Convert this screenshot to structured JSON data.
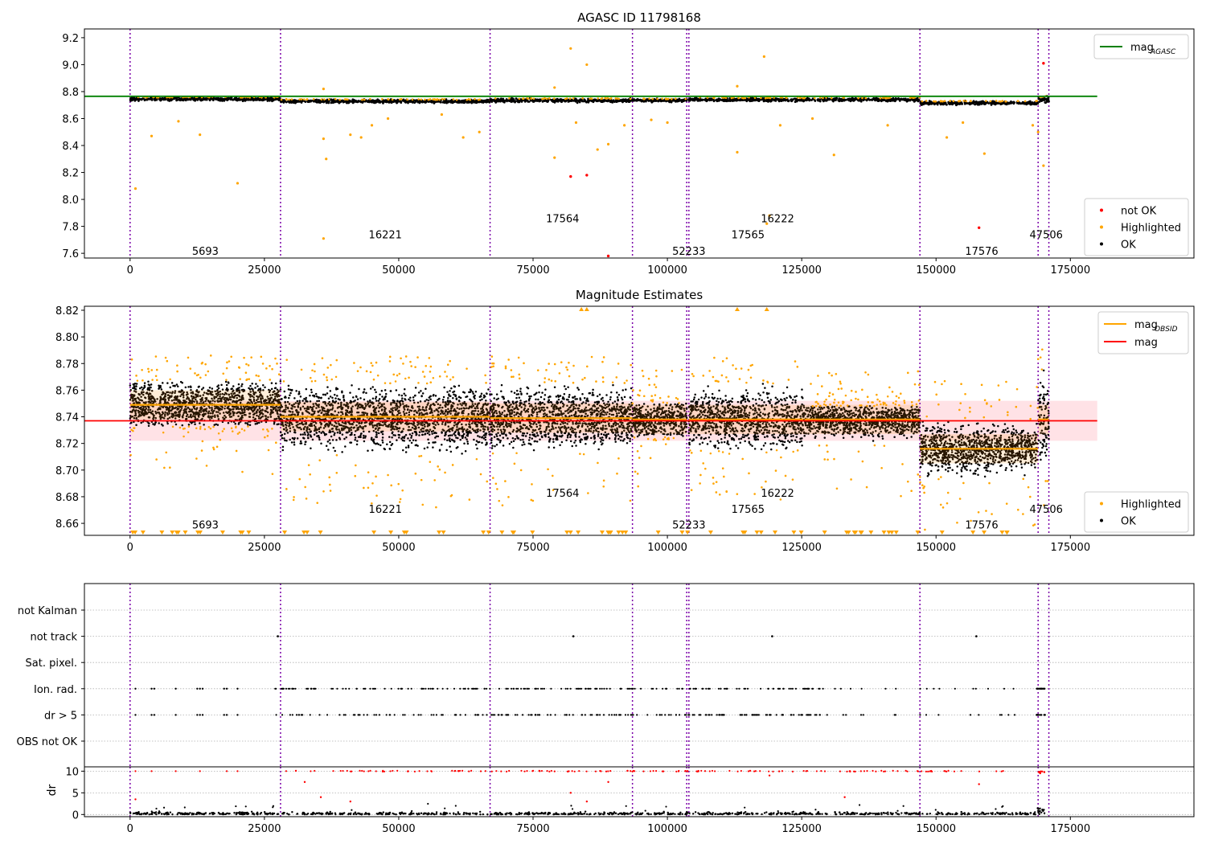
{
  "chart_data": [
    {
      "panel": "top",
      "type": "scatter",
      "title": "AGASC ID 11798168",
      "xlim": [
        -8500,
        198000
      ],
      "ylim": [
        7.565,
        9.265
      ],
      "xticks": [
        0,
        25000,
        50000,
        75000,
        100000,
        125000,
        150000,
        175000
      ],
      "xtick_labels": [
        "0",
        "25000",
        "50000",
        "75000",
        "100000",
        "125000",
        "150000",
        "175000"
      ],
      "yticks": [
        7.6,
        7.8,
        8.0,
        8.2,
        8.4,
        8.6,
        8.8,
        9.0,
        9.2
      ],
      "ytick_labels": [
        "7.6",
        "7.8",
        "8.0",
        "8.2",
        "8.4",
        "8.6",
        "8.8",
        "9.0",
        "9.2"
      ],
      "obsid_boundaries": [
        0,
        28000,
        67000,
        93500,
        103600,
        104000,
        147000,
        169000,
        171000
      ],
      "obsid_labels": [
        {
          "text": "5693",
          "x": 14000,
          "y": 7.62
        },
        {
          "text": "16221",
          "x": 47500,
          "y": 7.74
        },
        {
          "text": "17564",
          "x": 80500,
          "y": 7.86
        },
        {
          "text": "52233",
          "x": 104000,
          "y": 7.62
        },
        {
          "text": "17565",
          "x": 115000,
          "y": 7.74
        },
        {
          "text": "16222",
          "x": 120500,
          "y": 7.86
        },
        {
          "text": "17576",
          "x": 158500,
          "y": 7.62
        },
        {
          "text": "47506",
          "x": 170500,
          "y": 7.74
        }
      ],
      "mag_agasc": 8.765,
      "mag_agasc_xrange": [
        -8500,
        180000
      ],
      "band_segments": [
        {
          "x0": 0,
          "x1": 28000,
          "center": 8.745,
          "upper": 8.76,
          "lower": 8.73
        },
        {
          "x0": 28000,
          "x1": 67000,
          "center": 8.728,
          "upper": 8.745,
          "lower": 8.71
        },
        {
          "x0": 67000,
          "x1": 93500,
          "center": 8.735,
          "upper": 8.755,
          "lower": 8.72
        },
        {
          "x0": 93500,
          "x1": 103600,
          "center": 8.735,
          "upper": 8.75,
          "lower": 8.72
        },
        {
          "x0": 104000,
          "x1": 147000,
          "center": 8.74,
          "upper": 8.755,
          "lower": 8.725
        },
        {
          "x0": 147000,
          "x1": 169000,
          "center": 8.717,
          "upper": 8.73,
          "lower": 8.705
        },
        {
          "x0": 169000,
          "x1": 171000,
          "center": 8.74,
          "upper": 8.76,
          "lower": 8.72
        }
      ],
      "highlighted_points": [
        [
          1000,
          8.08
        ],
        [
          4000,
          8.47
        ],
        [
          9000,
          8.58
        ],
        [
          13000,
          8.48
        ],
        [
          20000,
          8.12
        ],
        [
          36000,
          8.82
        ],
        [
          36000,
          8.45
        ],
        [
          36500,
          8.3
        ],
        [
          36000,
          7.71
        ],
        [
          41000,
          8.48
        ],
        [
          43000,
          8.46
        ],
        [
          45000,
          8.55
        ],
        [
          48000,
          8.6
        ],
        [
          58000,
          8.63
        ],
        [
          62000,
          8.46
        ],
        [
          65000,
          8.5
        ],
        [
          79000,
          8.31
        ],
        [
          79000,
          8.83
        ],
        [
          82000,
          9.12
        ],
        [
          83000,
          8.57
        ],
        [
          85000,
          9.0
        ],
        [
          87000,
          8.37
        ],
        [
          89000,
          8.41
        ],
        [
          92000,
          8.55
        ],
        [
          97000,
          8.59
        ],
        [
          100000,
          8.57
        ],
        [
          113000,
          8.84
        ],
        [
          113000,
          8.35
        ],
        [
          118000,
          9.06
        ],
        [
          118500,
          7.82
        ],
        [
          119000,
          7.88
        ],
        [
          121000,
          8.55
        ],
        [
          127000,
          8.6
        ],
        [
          131000,
          8.33
        ],
        [
          141000,
          8.55
        ],
        [
          152000,
          8.46
        ],
        [
          155000,
          8.57
        ],
        [
          159000,
          8.34
        ],
        [
          168000,
          8.55
        ],
        [
          169000,
          8.5
        ],
        [
          170000,
          8.25
        ]
      ],
      "not_ok_points": [
        [
          82000,
          8.17
        ],
        [
          85000,
          8.18
        ],
        [
          89000,
          7.58
        ],
        [
          158000,
          7.79
        ],
        [
          170000,
          9.01
        ]
      ],
      "ok_segments": [
        {
          "x0": 0,
          "x1": 28000,
          "y": 8.745,
          "spread": 0.012
        },
        {
          "x0": 28000,
          "x1": 67000,
          "y": 8.728,
          "spread": 0.012
        },
        {
          "x0": 67000,
          "x1": 93500,
          "y": 8.735,
          "spread": 0.012
        },
        {
          "x0": 93500,
          "x1": 103600,
          "y": 8.735,
          "spread": 0.01
        },
        {
          "x0": 104000,
          "x1": 147000,
          "y": 8.74,
          "spread": 0.012
        },
        {
          "x0": 147000,
          "x1": 169000,
          "y": 8.715,
          "spread": 0.012
        },
        {
          "x0": 169000,
          "x1": 171000,
          "y": 8.74,
          "spread": 0.02
        }
      ],
      "legend_upper": [
        {
          "label": "mag",
          "sub": "AGASC",
          "color": "#008000",
          "style": "line"
        }
      ],
      "legend_lower": [
        {
          "label": "not OK",
          "color": "#ff0000",
          "style": "dot"
        },
        {
          "label": "Highlighted",
          "color": "#ffa500",
          "style": "dot"
        },
        {
          "label": "OK",
          "color": "#000000",
          "style": "dot"
        }
      ]
    },
    {
      "panel": "middle",
      "type": "scatter",
      "title": "Magnitude Estimates",
      "xlim": [
        -8500,
        198000
      ],
      "ylim": [
        8.651,
        8.823
      ],
      "xticks": [
        0,
        25000,
        50000,
        75000,
        100000,
        125000,
        150000,
        175000
      ],
      "xtick_labels": [
        "0",
        "25000",
        "50000",
        "75000",
        "100000",
        "125000",
        "150000",
        "175000"
      ],
      "yticks": [
        8.66,
        8.68,
        8.7,
        8.72,
        8.74,
        8.76,
        8.78,
        8.8,
        8.82
      ],
      "ytick_labels": [
        "8.66",
        "8.68",
        "8.70",
        "8.72",
        "8.74",
        "8.76",
        "8.78",
        "8.80",
        "8.82"
      ],
      "obsid_labels": [
        {
          "text": "5693",
          "x": 14000,
          "y": 8.659
        },
        {
          "text": "16221",
          "x": 47500,
          "y": 8.671
        },
        {
          "text": "17564",
          "x": 80500,
          "y": 8.683
        },
        {
          "text": "52233",
          "x": 104000,
          "y": 8.659
        },
        {
          "text": "17565",
          "x": 115000,
          "y": 8.671
        },
        {
          "text": "16222",
          "x": 120500,
          "y": 8.683
        },
        {
          "text": "17576",
          "x": 158500,
          "y": 8.659
        },
        {
          "text": "47506",
          "x": 170500,
          "y": 8.671
        }
      ],
      "mag": 8.737,
      "mag_band": [
        8.722,
        8.752
      ],
      "mag_xrange": [
        -8500,
        180000
      ],
      "obsid_segments": [
        {
          "x0": 0,
          "x1": 28000,
          "mag": 8.749,
          "lo": 8.733,
          "hi": 8.767,
          "spread": 0.011,
          "hl": 0.78
        },
        {
          "x0": 28000,
          "x1": 67000,
          "mag": 8.74,
          "lo": 8.712,
          "hi": 8.765,
          "spread": 0.014,
          "hl": 0.78
        },
        {
          "x0": 67000,
          "x1": 93500,
          "mag": 8.739,
          "lo": 8.713,
          "hi": 8.765,
          "spread": 0.013,
          "hl": 0.77
        },
        {
          "x0": 93500,
          "x1": 103600,
          "mag": 8.738,
          "lo": 8.725,
          "hi": 8.75,
          "spread": 0.009,
          "hl": 0.775
        },
        {
          "x0": 104000,
          "x1": 125500,
          "mag": 8.738,
          "lo": 8.715,
          "hi": 8.765,
          "spread": 0.013,
          "hl": 0.775
        },
        {
          "x0": 125500,
          "x1": 147000,
          "mag": 8.738,
          "lo": 8.72,
          "hi": 8.748,
          "spread": 0.008,
          "hl": 0.755
        },
        {
          "x0": 147000,
          "x1": 169000,
          "mag": 8.716,
          "lo": 8.695,
          "hi": 8.738,
          "spread": 0.011,
          "hl": 0.75
        },
        {
          "x0": 169000,
          "x1": 171000,
          "mag": 8.738,
          "lo": 8.7,
          "hi": 8.775,
          "spread": 0.02,
          "hl": 0.78
        }
      ],
      "legend_upper": [
        {
          "label": "mag",
          "sub": "OBSID",
          "color": "#ffa500",
          "style": "line"
        },
        {
          "label": "mag",
          "sub": "",
          "color": "#ff0000",
          "style": "line"
        }
      ],
      "legend_lower": [
        {
          "label": "Highlighted",
          "color": "#ffa500",
          "style": "dot"
        },
        {
          "label": "OK",
          "color": "#000000",
          "style": "dot"
        }
      ]
    },
    {
      "panel": "flags",
      "type": "scatter",
      "xlim": [
        -8500,
        198000
      ],
      "categories": [
        "not Kalman",
        "not track",
        "Sat. pixel.",
        "Ion. rad.",
        "dr > 5",
        "OBS not OK"
      ],
      "not_track_x": [
        27500,
        82500,
        119500,
        157500
      ],
      "ion_rad_sparse_x": [
        1000,
        4000,
        4500,
        8500,
        12500,
        13000,
        13500,
        17500,
        18000,
        20000
      ],
      "ion_rad_dense_range": [
        27000,
        165000
      ]
    },
    {
      "panel": "dr",
      "type": "scatter",
      "ylabel": "dr",
      "xlim": [
        -8500,
        198000
      ],
      "ylim": [
        -0.5,
        11
      ],
      "yticks": [
        0,
        5,
        10
      ],
      "ytick_labels": [
        "0",
        "5",
        "10"
      ],
      "xticks": [
        0,
        25000,
        50000,
        75000,
        100000,
        125000,
        150000,
        175000
      ],
      "xtick_labels": [
        "0",
        "25000",
        "50000",
        "75000",
        "100000",
        "125000",
        "150000",
        "175000"
      ],
      "mid_points": [
        [
          1000,
          3.5
        ],
        [
          32500,
          7.5
        ],
        [
          35500,
          4
        ],
        [
          41000,
          3
        ],
        [
          82000,
          5
        ],
        [
          85000,
          3
        ],
        [
          89000,
          7.5
        ],
        [
          119000,
          9
        ],
        [
          133000,
          4
        ],
        [
          158000,
          7
        ]
      ]
    }
  ]
}
